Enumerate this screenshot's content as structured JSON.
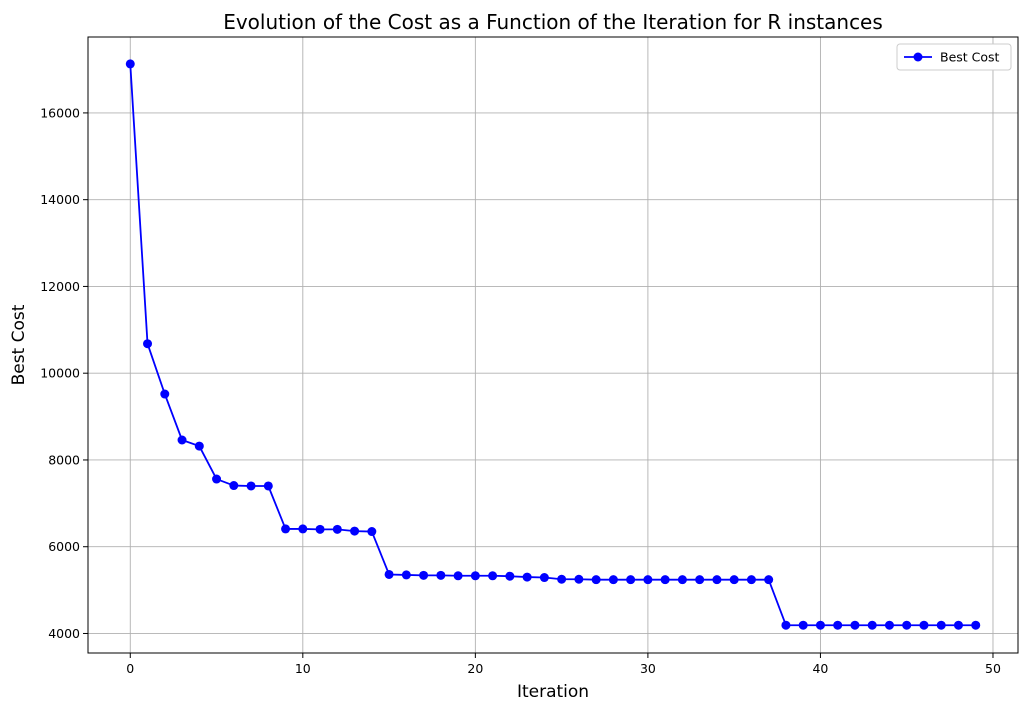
{
  "chart_data": {
    "type": "line",
    "title": "Evolution of the Cost as a Function of the Iteration for R instances",
    "xlabel": "Iteration",
    "ylabel": "Best Cost",
    "xlim": [
      -2.45,
      51.45
    ],
    "ylim": [
      3550,
      17750
    ],
    "xticks": [
      0,
      10,
      20,
      30,
      40,
      50
    ],
    "yticks": [
      4000,
      6000,
      8000,
      10000,
      12000,
      14000,
      16000
    ],
    "grid": true,
    "legend_position": "top-right",
    "colors": {
      "series": "#0000ff",
      "grid": "#b0b0b0",
      "axis": "#000000"
    },
    "x": [
      0,
      1,
      2,
      3,
      4,
      5,
      6,
      7,
      8,
      9,
      10,
      11,
      12,
      13,
      14,
      15,
      16,
      17,
      18,
      19,
      20,
      21,
      22,
      23,
      24,
      25,
      26,
      27,
      28,
      29,
      30,
      31,
      32,
      33,
      34,
      35,
      36,
      37,
      38,
      39,
      40,
      41,
      42,
      43,
      44,
      45,
      46,
      47,
      48,
      49
    ],
    "series": [
      {
        "name": "Best Cost",
        "marker": "circle",
        "values": [
          17130,
          10680,
          9520,
          8460,
          8320,
          7560,
          7410,
          7400,
          7400,
          6410,
          6410,
          6400,
          6400,
          6360,
          6350,
          5360,
          5350,
          5340,
          5340,
          5330,
          5330,
          5330,
          5320,
          5300,
          5290,
          5250,
          5250,
          5240,
          5240,
          5240,
          5240,
          5240,
          5240,
          5240,
          5240,
          5240,
          5240,
          5240,
          4190,
          4190,
          4190,
          4190,
          4190,
          4190,
          4190,
          4190,
          4190,
          4190,
          4190,
          4190
        ]
      }
    ]
  }
}
